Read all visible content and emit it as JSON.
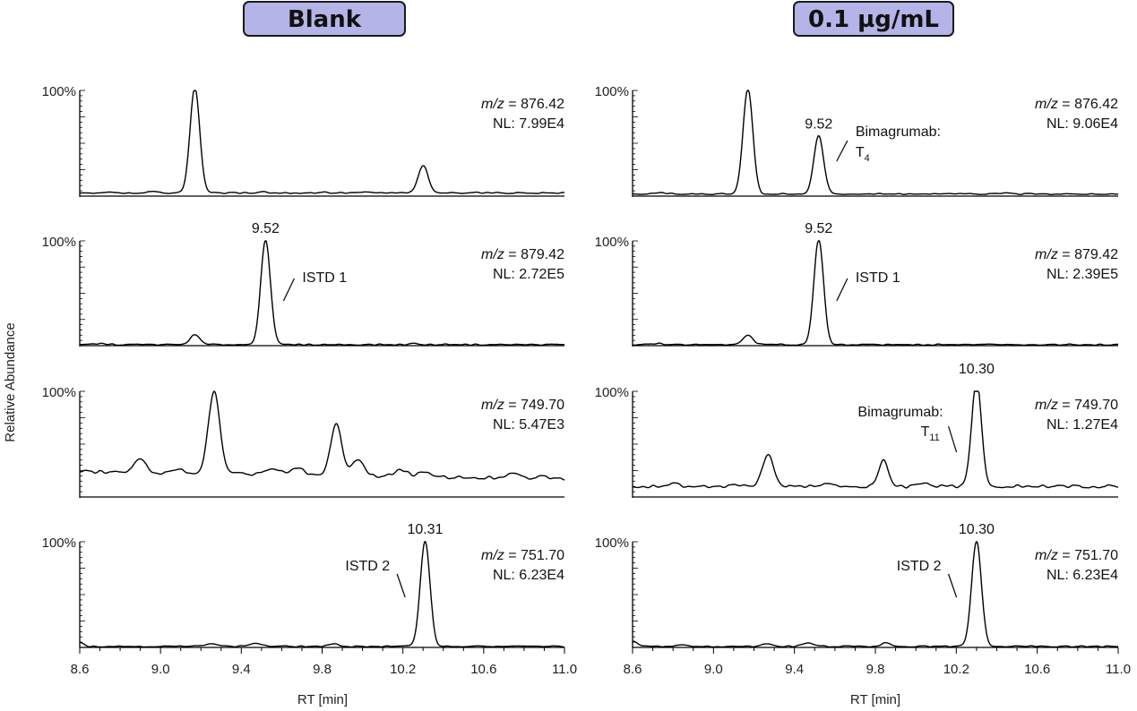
{
  "panels": [
    {
      "title": "Blank"
    },
    {
      "title": "0.1 µg/mL"
    }
  ],
  "y_axis_label": "Relative Abundance",
  "x_axis_label": "RT [min]",
  "pct_label": "100%",
  "chart_data": {
    "type": "line",
    "x_axis": {
      "label": "RT [min]",
      "range": [
        8.6,
        11.0
      ],
      "ticks": [
        8.6,
        9.0,
        9.4,
        9.8,
        10.2,
        10.6,
        11.0
      ]
    },
    "y_axis": {
      "label": "Relative Abundance",
      "top_label": "100%",
      "range": [
        0,
        100
      ]
    },
    "grid": false,
    "panels": [
      {
        "column": "Blank",
        "rows": [
          {
            "mz_prefix": "m/z",
            "mz": "= 876.42",
            "nl": "NL: 7.99E4",
            "baseline": 3,
            "peaks": [
              [
                9.17,
                100,
                0.024
              ],
              [
                10.3,
                26,
                0.024
              ],
              [
                8.75,
                1,
                0.03
              ],
              [
                8.95,
                1,
                0.03
              ],
              [
                9.5,
                1.5,
                0.02
              ],
              [
                9.8,
                0.8,
                0.02
              ],
              [
                10.0,
                0.6,
                0.03
              ],
              [
                10.55,
                0.6,
                0.03
              ]
            ],
            "annotations": []
          },
          {
            "mz_prefix": "m/z",
            "mz": "= 879.42",
            "nl": "NL: 2.72E5",
            "baseline": 1,
            "peaks": [
              [
                9.52,
                100,
                0.024
              ],
              [
                9.17,
                9,
                0.025
              ],
              [
                8.7,
                1,
                0.03
              ],
              [
                10.25,
                1,
                0.02
              ],
              [
                10.45,
                0.5,
                0.02
              ]
            ],
            "annotations": [
              {
                "text": "9.52",
                "x": 9.52,
                "type": "apex"
              },
              {
                "text": "ISTD 1",
                "x": 9.6,
                "type": "side-right"
              }
            ]
          },
          {
            "mz_prefix": "m/z",
            "mz": "= 749.70",
            "nl": "NL: 5.47E3",
            "baseline": 24,
            "baseline_end": 17,
            "peaks": [
              [
                9.265,
                78,
                0.028
              ],
              [
                9.87,
                50,
                0.027
              ],
              [
                9.98,
                15,
                0.03
              ],
              [
                8.9,
                12,
                0.03
              ],
              [
                9.1,
                3,
                0.03
              ],
              [
                9.55,
                5,
                0.04
              ],
              [
                9.68,
                6,
                0.03
              ],
              [
                10.19,
                7,
                0.03
              ],
              [
                10.3,
                4,
                0.03
              ],
              [
                10.75,
                4,
                0.03
              ],
              [
                10.9,
                2,
                0.03
              ]
            ],
            "annotations": []
          },
          {
            "mz_prefix": "m/z",
            "mz": "= 751.70",
            "nl": "NL: 6.23E4",
            "baseline": 1,
            "peaks": [
              [
                10.31,
                100,
                0.024
              ],
              [
                9.25,
                3,
                0.03
              ],
              [
                9.47,
                3,
                0.03
              ],
              [
                9.86,
                2,
                0.025
              ],
              [
                8.6,
                4,
                0.02
              ]
            ],
            "annotations": [
              {
                "text": "10.31",
                "x": 10.31,
                "type": "apex"
              },
              {
                "text": "ISTD 2",
                "x": 10.22,
                "type": "side-left"
              }
            ]
          }
        ]
      },
      {
        "column": "0.1 µg/mL",
        "rows": [
          {
            "mz_prefix": "m/z",
            "mz": "= 876.42",
            "nl": "NL: 9.06E4",
            "baseline": 2,
            "peaks": [
              [
                9.17,
                100,
                0.024
              ],
              [
                9.52,
                55,
                0.024
              ],
              [
                8.75,
                1,
                0.03
              ],
              [
                10.45,
                0.6,
                0.03
              ],
              [
                10.75,
                0.6,
                0.03
              ]
            ],
            "annotations": [
              {
                "text": "9.52",
                "x": 9.52,
                "type": "apex"
              },
              {
                "text": "Bimagrumab:",
                "sub_base": "T",
                "sub": "4",
                "x": 9.6,
                "type": "side-right-2line"
              }
            ]
          },
          {
            "mz_prefix": "m/z",
            "mz": "= 879.42",
            "nl": "NL: 2.39E5",
            "baseline": 1,
            "peaks": [
              [
                9.52,
                100,
                0.024
              ],
              [
                9.17,
                9,
                0.025
              ],
              [
                8.72,
                1,
                0.03
              ],
              [
                10.45,
                0.5,
                0.02
              ]
            ],
            "annotations": [
              {
                "text": "9.52",
                "x": 9.52,
                "type": "apex"
              },
              {
                "text": "ISTD 1",
                "x": 9.6,
                "type": "side-right"
              }
            ]
          },
          {
            "mz_prefix": "m/z",
            "mz": "= 749.70",
            "nl": "NL: 1.27E4",
            "baseline": 10,
            "peaks": [
              [
                10.3,
                100,
                0.024
              ],
              [
                9.27,
                30,
                0.028
              ],
              [
                9.84,
                25,
                0.022
              ],
              [
                8.8,
                3,
                0.03
              ],
              [
                9.1,
                1,
                0.03
              ],
              [
                9.55,
                2,
                0.03
              ],
              [
                10.05,
                2,
                0.03
              ]
            ],
            "annotations": [
              {
                "text": "10.30",
                "x": 10.3,
                "type": "apex"
              },
              {
                "text": "Bimagrumab:",
                "sub_base": "T",
                "sub": "11",
                "x": 10.21,
                "type": "side-left-2line"
              }
            ]
          },
          {
            "mz_prefix": "m/z",
            "mz": "= 751.70",
            "nl": "NL: 6.23E4",
            "baseline": 1,
            "peaks": [
              [
                10.3,
                100,
                0.024
              ],
              [
                9.27,
                2.5,
                0.03
              ],
              [
                9.47,
                3,
                0.03
              ],
              [
                9.85,
                3,
                0.022
              ],
              [
                8.6,
                5,
                0.02
              ],
              [
                8.85,
                1,
                0.03
              ]
            ],
            "annotations": [
              {
                "text": "10.30",
                "x": 10.3,
                "type": "apex"
              },
              {
                "text": "ISTD 2",
                "x": 10.21,
                "type": "side-left"
              }
            ]
          }
        ]
      }
    ]
  }
}
